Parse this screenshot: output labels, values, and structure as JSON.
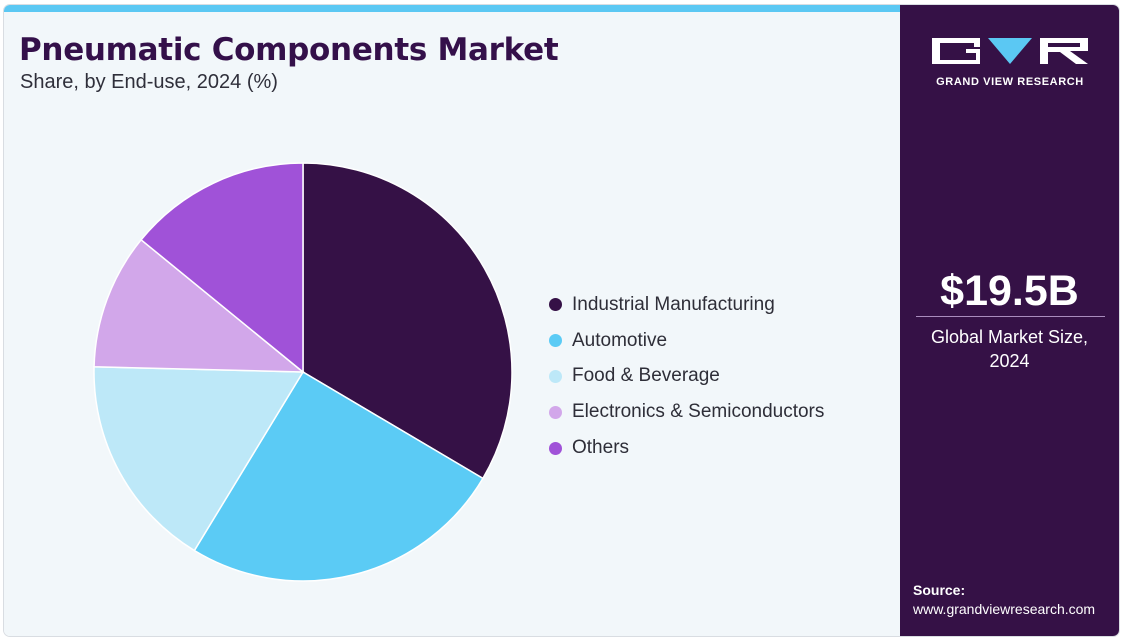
{
  "title": "Pneumatic Components Market",
  "subtitle": "Share, by End-use, 2024 (%)",
  "brand": {
    "name": "GRAND VIEW RESEARCH",
    "panel_color": "#351146",
    "accent_color": "#5bc8f3"
  },
  "kpi": {
    "value": "$19.5B",
    "caption_line1": "Global Market Size,",
    "caption_line2": "2024"
  },
  "source": {
    "label": "Source:",
    "url": "www.grandviewresearch.com"
  },
  "chart_data": {
    "type": "pie",
    "title": "Pneumatic Components Market",
    "subtitle": "Share, by End-use, 2024 (%)",
    "start_angle_deg": 0,
    "direction": "clockwise",
    "legend_position": "right",
    "categories": [
      "Industrial Manufacturing",
      "Automotive",
      "Food & Beverage",
      "Electronics & Semiconductors",
      "Others"
    ],
    "values": [
      33.5,
      25.2,
      16.7,
      10.5,
      14.1
    ],
    "colors": [
      "#351146",
      "#5bcbf5",
      "#bde8f8",
      "#d2a7ea",
      "#a052d8"
    ]
  }
}
